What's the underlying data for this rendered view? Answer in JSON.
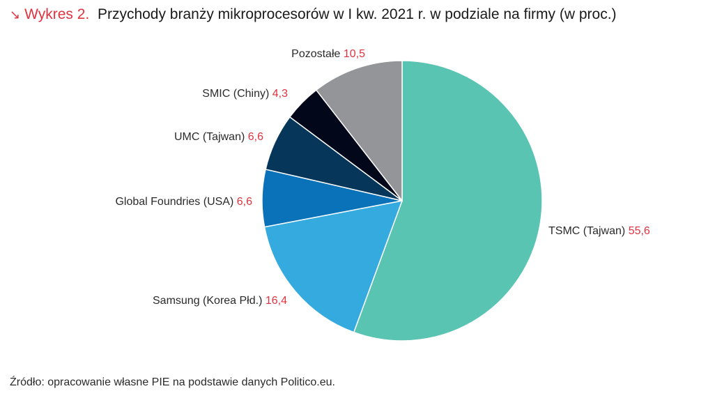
{
  "header": {
    "arrow_icon": "↘",
    "lead": "Wykres 2.",
    "title": "Przychody branży mikroprocesorów w I kw. 2021 r. w podziale na firmy (w proc.)"
  },
  "chart_data": {
    "type": "pie",
    "title": "Przychody branży mikroprocesorów w I kw. 2021 r. w podziale na firmy (w proc.)",
    "start": "top",
    "direction": "clockwise",
    "slices": [
      {
        "label": "TSMC (Tajwan)",
        "value": 55.6,
        "value_label": "55,6",
        "color": "#5ac4b3"
      },
      {
        "label": "Samsung (Korea Płd.)",
        "value": 16.4,
        "value_label": "16,4",
        "color": "#35aadf"
      },
      {
        "label": "Global Foundries (USA)",
        "value": 6.6,
        "value_label": "6,6",
        "color": "#0a72b8"
      },
      {
        "label": "UMC (Tajwan)",
        "value": 6.6,
        "value_label": "6,6",
        "color": "#06375a"
      },
      {
        "label": "SMIC (Chiny)",
        "value": 4.3,
        "value_label": "4,3",
        "color": "#02071a"
      },
      {
        "label": "Pozostałe",
        "value": 10.5,
        "value_label": "10,5",
        "color": "#939598"
      }
    ]
  },
  "footer": {
    "source": "Źródło: opracowanie własne PIE na podstawie danych Politico.eu."
  }
}
